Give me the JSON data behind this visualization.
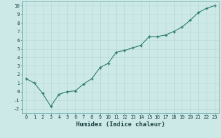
{
  "x": [
    0,
    1,
    2,
    3,
    4,
    5,
    6,
    7,
    8,
    9,
    10,
    11,
    12,
    13,
    14,
    15,
    16,
    17,
    18,
    19,
    20,
    21,
    22,
    23
  ],
  "y": [
    1.5,
    1.0,
    -0.2,
    -1.7,
    -0.3,
    0.0,
    0.1,
    0.9,
    1.5,
    2.8,
    3.3,
    4.6,
    4.8,
    5.1,
    5.4,
    6.4,
    6.4,
    6.6,
    7.0,
    7.5,
    8.3,
    9.2,
    9.7,
    10.0
  ],
  "line_color": "#2e7d6e",
  "marker": "+",
  "markersize": 3.5,
  "linewidth": 0.8,
  "bg_color": "#cce9e7",
  "grid_color": "#b8d8d5",
  "xlabel": "Humidex (Indice chaleur)",
  "xlim": [
    -0.5,
    23.5
  ],
  "ylim": [
    -2.5,
    10.5
  ],
  "yticks": [
    -2,
    -1,
    0,
    1,
    2,
    3,
    4,
    5,
    6,
    7,
    8,
    9,
    10
  ],
  "xticks": [
    0,
    1,
    2,
    3,
    4,
    5,
    6,
    7,
    8,
    9,
    10,
    11,
    12,
    13,
    14,
    15,
    16,
    17,
    18,
    19,
    20,
    21,
    22,
    23
  ],
  "tick_fontsize": 5.0,
  "xlabel_fontsize": 6.5,
  "markeredgewidth": 1.0
}
